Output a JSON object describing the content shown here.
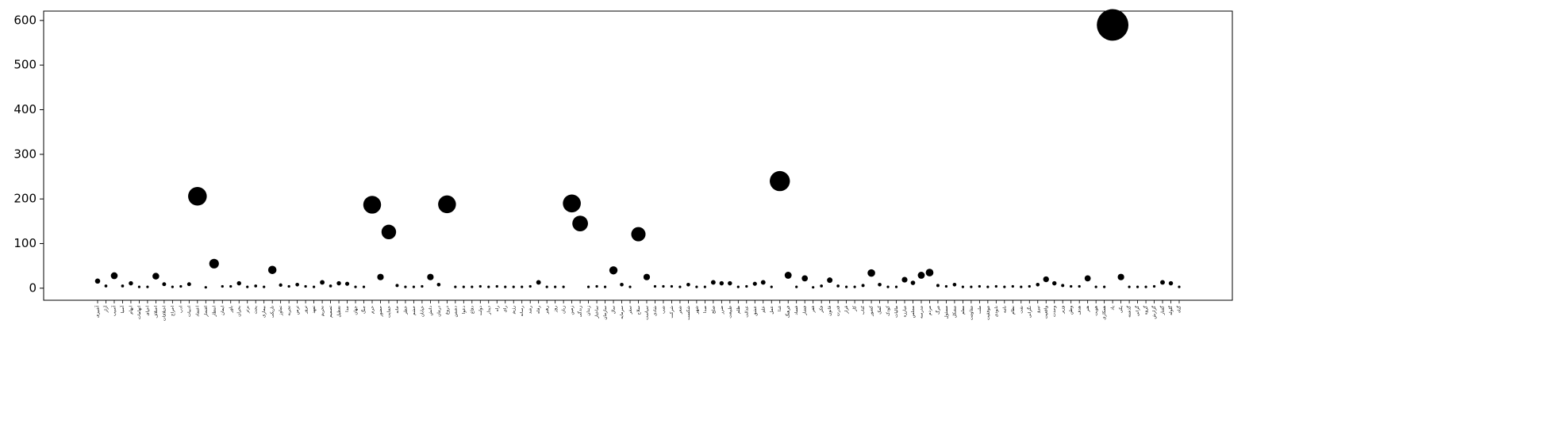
{
  "chart_data": {
    "type": "scatter",
    "color": "#000000",
    "categories": [
      "آشپزی",
      "آزار",
      "آسیب",
      "آسیا",
      "ابهام",
      "اتهامات",
      "احیای",
      "اختلاف",
      "اختلافات",
      "اخراج",
      "ادب",
      "ادبیات",
      "اعتماد",
      "افتخار",
      "انتظار",
      "ایمان",
      "باور",
      "بحران",
      "برتر",
      "بحث",
      "بیماری",
      "تاریکی",
      "تجاوز",
      "تجربه",
      "ترس",
      "ترور",
      "تعهد",
      "تحریم",
      "تصمیم",
      "تعطیل",
      "جدا",
      "جهان",
      "جنگ",
      "حرم",
      "حضور",
      "حمایت",
      "خانه",
      "خطر",
      "خشم",
      "خیابان",
      "دانش",
      "درمان",
      "دروغ",
      "دشمن",
      "دعوا",
      "دفاع",
      "دولت",
      "دیدار",
      "راه",
      "رای",
      "رژیم",
      "رسانه",
      "رشد",
      "رفاه",
      "رهبر",
      "روز",
      "زبان",
      "زمین",
      "زندگی",
      "زندان",
      "ساختار",
      "سازمان",
      "سال",
      "سرمایه",
      "سفر",
      "سلاح",
      "سیاست",
      "شادی",
      "شب",
      "شرکت",
      "شعر",
      "شکست",
      "شهر",
      "صدا",
      "صلح",
      "ضرر",
      "طبیعت",
      "ظلم",
      "عدالت",
      "عشق",
      "علم",
      "عمل",
      "غذا",
      "فرهنگ",
      "فساد",
      "فشار",
      "فقر",
      "فکر",
      "قانون",
      "قدرت",
      "قرار",
      "کار",
      "کتاب",
      "کشور",
      "کمک",
      "کودک",
      "مالیات",
      "مبارزه",
      "مجلس",
      "مدرسه",
      "مردم",
      "مرگ",
      "مسئول",
      "مشکل",
      "معلم",
      "مقاومت",
      "ملت",
      "موفقیت",
      "نابودی",
      "نامه",
      "نظام",
      "نفت",
      "نگرانی",
      "نیرو",
      "واقعیت",
      "وحدت",
      "وزیر",
      "وطن",
      "هدف",
      "هنر",
      "هویت",
      "همکاری",
      "یاد",
      "یکی",
      "گذشته",
      "گرانی",
      "گروه",
      "گزارش",
      "گفتار",
      "گلوله",
      "گناه"
    ],
    "values": [
      16,
      5,
      28,
      5,
      11,
      3,
      3,
      27,
      9,
      3,
      4,
      9,
      206,
      2,
      55,
      4,
      4,
      11,
      3,
      5,
      3,
      41,
      7,
      4,
      8,
      4,
      3,
      13,
      5,
      11,
      10,
      3,
      3,
      187,
      25,
      126,
      6,
      3,
      3,
      4,
      25,
      8,
      188,
      3,
      3,
      3,
      4,
      3,
      4,
      3,
      3,
      3,
      4,
      13,
      3,
      3,
      3,
      190,
      145,
      3,
      4,
      3,
      40,
      8,
      3,
      121,
      25,
      4,
      4,
      4,
      3,
      8,
      3,
      3,
      13,
      11,
      11,
      3,
      4,
      10,
      13,
      3,
      240,
      29,
      3,
      22,
      2,
      5,
      18,
      5,
      3,
      3,
      6,
      34,
      8,
      3,
      3,
      19,
      12,
      29,
      35,
      6,
      4,
      8,
      3,
      3,
      4,
      3,
      4,
      3,
      4,
      3,
      4,
      8,
      20,
      11,
      6,
      4,
      4,
      22,
      3,
      3,
      590,
      25,
      3,
      3,
      3,
      4,
      13,
      11,
      3
    ],
    "ylim": [
      -27,
      621
    ],
    "yticks": [
      0,
      100,
      200,
      300,
      400,
      500,
      600
    ]
  }
}
